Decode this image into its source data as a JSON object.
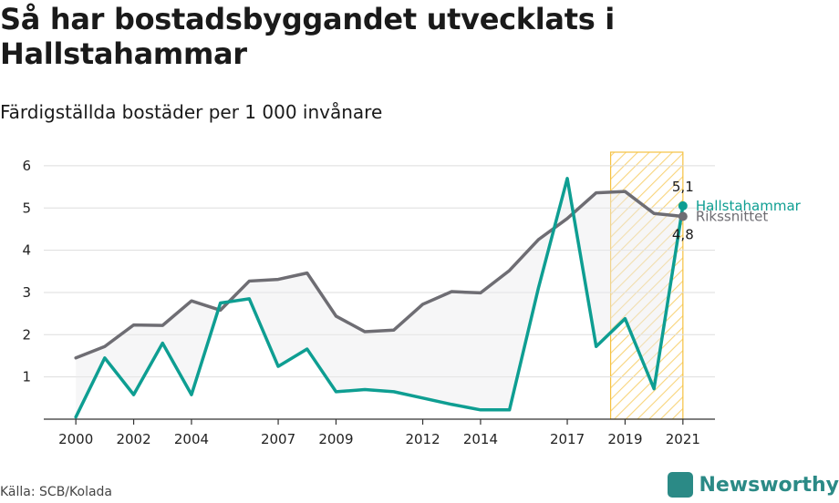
{
  "header": {
    "title": "Så har bostadsbyggandet utvecklats i Hallstahammar",
    "subtitle": "Färdigställda bostäder per 1 000 invånare"
  },
  "footer": {
    "source": "Källa: SCB/Kolada",
    "brand": "Newsworthy"
  },
  "colors": {
    "hallstahammar": "#0e9e92",
    "riks": "#6e6d73",
    "band": "#f5c242",
    "grid": "#dddddd"
  },
  "chart_data": {
    "type": "line",
    "x": [
      2000,
      2001,
      2002,
      2003,
      2004,
      2005,
      2006,
      2007,
      2008,
      2009,
      2010,
      2011,
      2012,
      2013,
      2014,
      2015,
      2016,
      2017,
      2018,
      2019,
      2020,
      2021
    ],
    "x_tick_labels": [
      "2000",
      "2002",
      "2004",
      "2007",
      "2009",
      "2012",
      "2014",
      "2017",
      "2019",
      "2021"
    ],
    "y_tick_labels": [
      "1",
      "2",
      "3",
      "4",
      "5",
      "6"
    ],
    "ylim": [
      0,
      6.3
    ],
    "xlim": [
      1999.9,
      2021.1
    ],
    "grid": true,
    "highlight_band": [
      2018.5,
      2021
    ],
    "series": [
      {
        "name": "Hallstahammar",
        "color": "#0e9e92",
        "values": [
          0.05,
          1.45,
          0.58,
          1.8,
          0.58,
          2.75,
          2.85,
          1.25,
          1.66,
          0.65,
          0.7,
          0.65,
          0.5,
          0.35,
          0.22,
          0.22,
          3.1,
          5.7,
          1.72,
          2.38,
          0.72,
          5.05
        ],
        "end_label": "5,1"
      },
      {
        "name": "Rikssnittet",
        "color": "#6e6d73",
        "values": [
          1.45,
          1.72,
          2.23,
          2.22,
          2.8,
          2.58,
          3.27,
          3.31,
          3.46,
          2.44,
          2.07,
          2.11,
          2.72,
          3.02,
          2.99,
          3.52,
          4.25,
          4.75,
          5.36,
          5.39,
          4.87,
          4.8
        ],
        "end_label": "4,8"
      }
    ]
  }
}
